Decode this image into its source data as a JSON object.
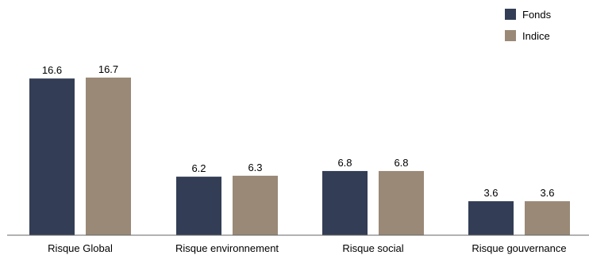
{
  "chart_data": {
    "type": "bar",
    "title": "",
    "xlabel": "",
    "ylabel": "",
    "categories": [
      "Risque Global",
      "Risque environnement",
      "Risque social",
      "Risque gouvernance"
    ],
    "series": [
      {
        "name": "Fonds",
        "color": "#333d55",
        "values": [
          16.6,
          6.2,
          6.8,
          3.6
        ]
      },
      {
        "name": "Indice",
        "color": "#9a8977",
        "values": [
          16.7,
          6.3,
          6.8,
          3.6
        ]
      }
    ],
    "ylim": [
      0,
      18.5
    ],
    "grid": false,
    "legend": "top-right",
    "value_labels": [
      [
        "16.6",
        "6.2",
        "6.8",
        "3.6"
      ],
      [
        "16.7",
        "6.3",
        "6.8",
        "3.6"
      ]
    ]
  }
}
